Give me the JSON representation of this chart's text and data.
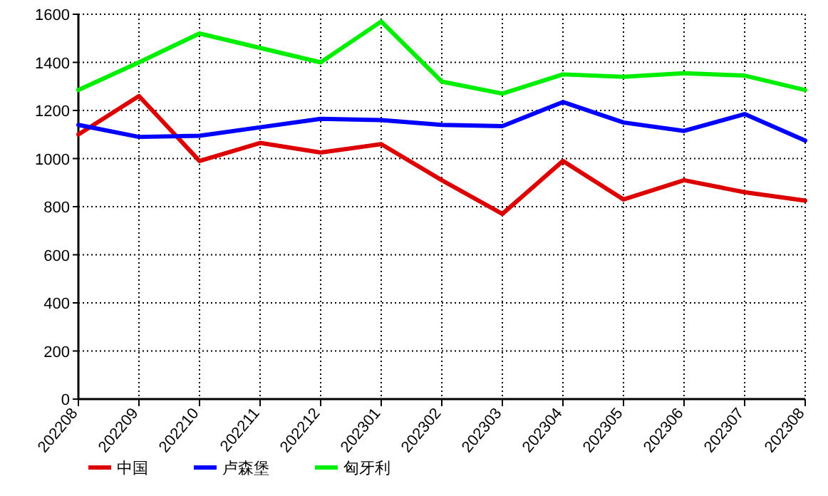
{
  "chart_data": {
    "type": "line",
    "categories": [
      "202208",
      "202209",
      "202210",
      "202211",
      "202212",
      "202301",
      "202302",
      "202303",
      "202304",
      "202305",
      "202306",
      "202307",
      "202308"
    ],
    "series": [
      {
        "name": "中国",
        "color": "#dd0000",
        "values": [
          1100,
          1260,
          990,
          1065,
          1025,
          1060,
          910,
          770,
          990,
          830,
          910,
          860,
          825
        ]
      },
      {
        "name": "卢森堡",
        "color": "#0000ff",
        "values": [
          1140,
          1090,
          1095,
          1130,
          1165,
          1160,
          1140,
          1135,
          1235,
          1150,
          1115,
          1185,
          1075
        ]
      },
      {
        "name": "匈牙利",
        "color": "#00ee00",
        "values": [
          1285,
          1400,
          1520,
          1460,
          1400,
          1570,
          1320,
          1270,
          1350,
          1340,
          1355,
          1345,
          1285
        ]
      }
    ],
    "ylim": [
      0,
      1600
    ],
    "yticks": [
      0,
      200,
      400,
      600,
      800,
      1000,
      1200,
      1400,
      1600
    ],
    "grid": true,
    "legend": "bottom left",
    "marker": "none",
    "line_style": "solid"
  }
}
